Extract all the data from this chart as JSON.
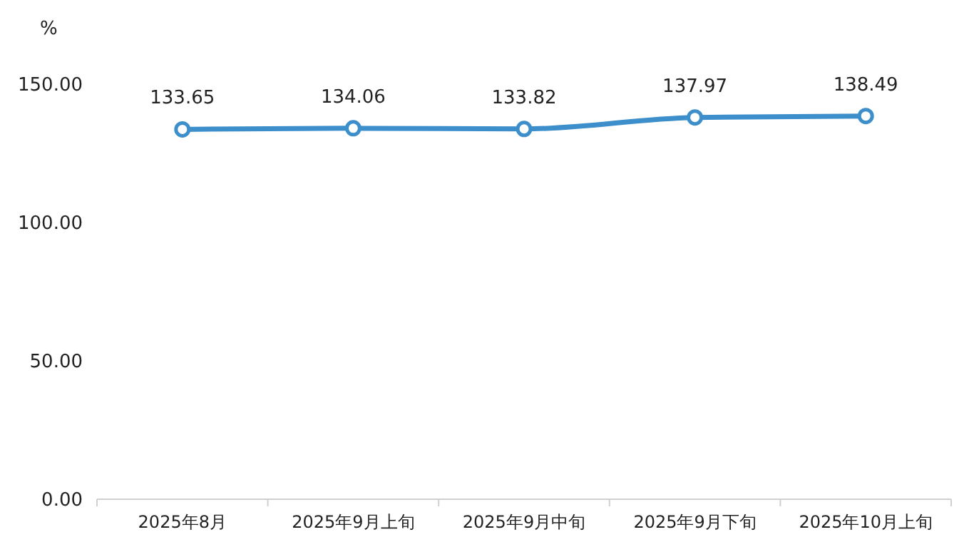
{
  "chart_data": {
    "type": "line",
    "ylabel": "%",
    "categories": [
      "2025年8月",
      "2025年9月上旬",
      "2025年9月中旬",
      "2025年9月下旬",
      "2025年10月上旬"
    ],
    "series": [
      {
        "color": "#3d8fcb",
        "values": [
          133.65,
          134.06,
          133.82,
          137.97,
          138.49
        ]
      }
    ],
    "ylim": [
      0,
      150
    ],
    "yticks": [
      {
        "value": 0,
        "label": "0.00"
      },
      {
        "value": 50,
        "label": "50.00"
      },
      {
        "value": 100,
        "label": "100.00"
      },
      {
        "value": 150,
        "label": "150.00"
      }
    ],
    "data_labels": true,
    "marker": "circle",
    "line_style": "solid",
    "grid": false
  }
}
